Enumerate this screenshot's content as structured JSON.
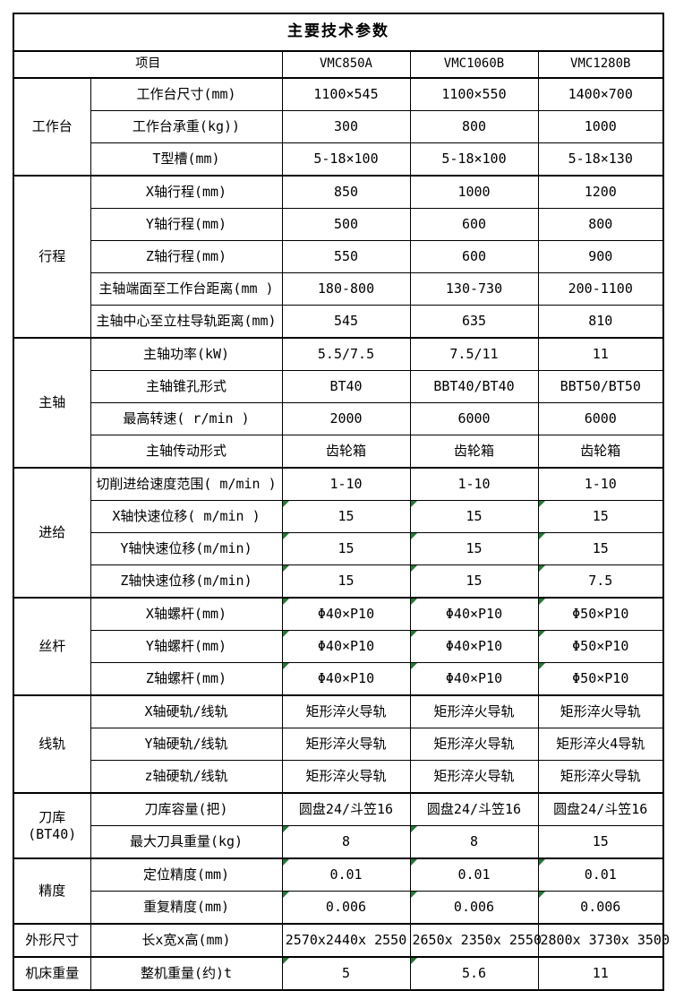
{
  "title": "主要技术参数",
  "header": {
    "item_label": "项目",
    "models": [
      "VMC850A",
      "VMC1060B",
      "VMC1280B"
    ]
  },
  "groups": [
    {
      "name": "工作台",
      "rows": [
        {
          "label": "工作台尺寸(mm)",
          "values": [
            "1100×545",
            "1100×550",
            "1400×700"
          ]
        },
        {
          "label": "工作台承重(kg))",
          "values": [
            "300",
            "800",
            "1000"
          ]
        },
        {
          "label": "T型槽(mm)",
          "values": [
            "5-18×100",
            "5-18×100",
            "5-18×130"
          ]
        }
      ]
    },
    {
      "name": "行程",
      "rows": [
        {
          "label": "X轴行程(mm)",
          "values": [
            "850",
            "1000",
            "1200"
          ]
        },
        {
          "label": "Y轴行程(mm)",
          "values": [
            "500",
            "600",
            "800"
          ]
        },
        {
          "label": "Z轴行程(mm)",
          "values": [
            "550",
            "600",
            "900"
          ]
        },
        {
          "label": "主轴端面至工作台距离(mm )",
          "values": [
            "180-800",
            "130-730",
            "200-1100"
          ]
        },
        {
          "label": "主轴中心至立柱导轨距离(mm)",
          "values": [
            "545",
            "635",
            "810"
          ]
        }
      ]
    },
    {
      "name": "主轴",
      "rows": [
        {
          "label": "主轴功率(kW)",
          "values": [
            "5.5/7.5",
            "7.5/11",
            "11"
          ]
        },
        {
          "label": "主轴锥孔形式",
          "values": [
            "BT40",
            "BBT40/BT40",
            "BBT50/BT50"
          ]
        },
        {
          "label": "最高转速( r/min )",
          "values": [
            "2000",
            "6000",
            "6000"
          ]
        },
        {
          "label": "主轴传动形式",
          "values": [
            "齿轮箱",
            "齿轮箱",
            "齿轮箱"
          ]
        }
      ]
    },
    {
      "name": "进给",
      "rows": [
        {
          "label": "切削进给速度范围( m/min )",
          "values": [
            "1-10",
            "1-10",
            "1-10"
          ]
        },
        {
          "label": "X轴快速位移( m/min )",
          "values": [
            "15",
            "15",
            "15"
          ],
          "marks": [
            true,
            true,
            true
          ]
        },
        {
          "label": "Y轴快速位移(m/min)",
          "values": [
            "15",
            "15",
            "15"
          ],
          "marks": [
            true,
            true,
            true
          ]
        },
        {
          "label": "Z轴快速位移(m/min)",
          "values": [
            "15",
            "15",
            "7.5"
          ],
          "marks": [
            true,
            true,
            true
          ]
        }
      ]
    },
    {
      "name": "丝杆",
      "rows": [
        {
          "label": "X轴螺杆(mm)",
          "values": [
            "Φ40×P10",
            "Φ40×P10",
            "Φ50×P10"
          ],
          "marks": [
            true,
            true,
            true
          ]
        },
        {
          "label": "Y轴螺杆(mm)",
          "values": [
            "Φ40×P10",
            "Φ40×P10",
            "Φ50×P10"
          ],
          "marks": [
            true,
            true,
            true
          ]
        },
        {
          "label": "Z轴螺杆(mm)",
          "values": [
            "Φ40×P10",
            "Φ40×P10",
            "Φ50×P10"
          ],
          "marks": [
            true,
            true,
            true
          ]
        }
      ]
    },
    {
      "name": "线轨",
      "rows": [
        {
          "label": "X轴硬轨/线轨",
          "values": [
            "矩形淬火导轨",
            "矩形淬火导轨",
            "矩形淬火导轨"
          ]
        },
        {
          "label": "Y轴硬轨/线轨",
          "values": [
            "矩形淬火导轨",
            "矩形淬火导轨",
            "矩形淬火4导轨"
          ]
        },
        {
          "label": "z轴硬轨/线轨",
          "values": [
            "矩形淬火导轨",
            "矩形淬火导轨",
            "矩形淬火导轨"
          ]
        }
      ]
    },
    {
      "name": "刀库\n(BT40)",
      "rows": [
        {
          "label": "刀库容量(把)",
          "values": [
            "圆盘24/斗笠16",
            "圆盘24/斗笠16",
            "圆盘24/斗笠16"
          ]
        },
        {
          "label": "最大刀具重量(kg)",
          "values": [
            "8",
            "8",
            "15"
          ],
          "marks": [
            true,
            true,
            false
          ]
        }
      ]
    },
    {
      "name": "精度",
      "rows": [
        {
          "label": "定位精度(mm)",
          "values": [
            "0.01",
            "0.01",
            "0.01"
          ],
          "marks": [
            true,
            true,
            true
          ]
        },
        {
          "label": "重复精度(mm)",
          "values": [
            "0.006",
            "0.006",
            "0.006"
          ],
          "marks": [
            true,
            true,
            true
          ]
        }
      ]
    },
    {
      "name": "外形尺寸",
      "rows": [
        {
          "label": "长x宽x高(mm)",
          "values": [
            "2570x2440x 2550",
            "2650x 2350x 2550",
            "2800x 3730x 3500"
          ]
        }
      ]
    },
    {
      "name": "机床重量",
      "rows": [
        {
          "label": "整机重量(约)t",
          "values": [
            "5",
            "5.6",
            "11"
          ],
          "marks": [
            true,
            true,
            false
          ]
        }
      ]
    }
  ],
  "colors": {
    "border": "#000000",
    "text": "#000000",
    "background": "#ffffff",
    "corner_marker_green": "#217a36"
  },
  "icons": {
    "corner_marker": "green-corner-marker-icon"
  }
}
